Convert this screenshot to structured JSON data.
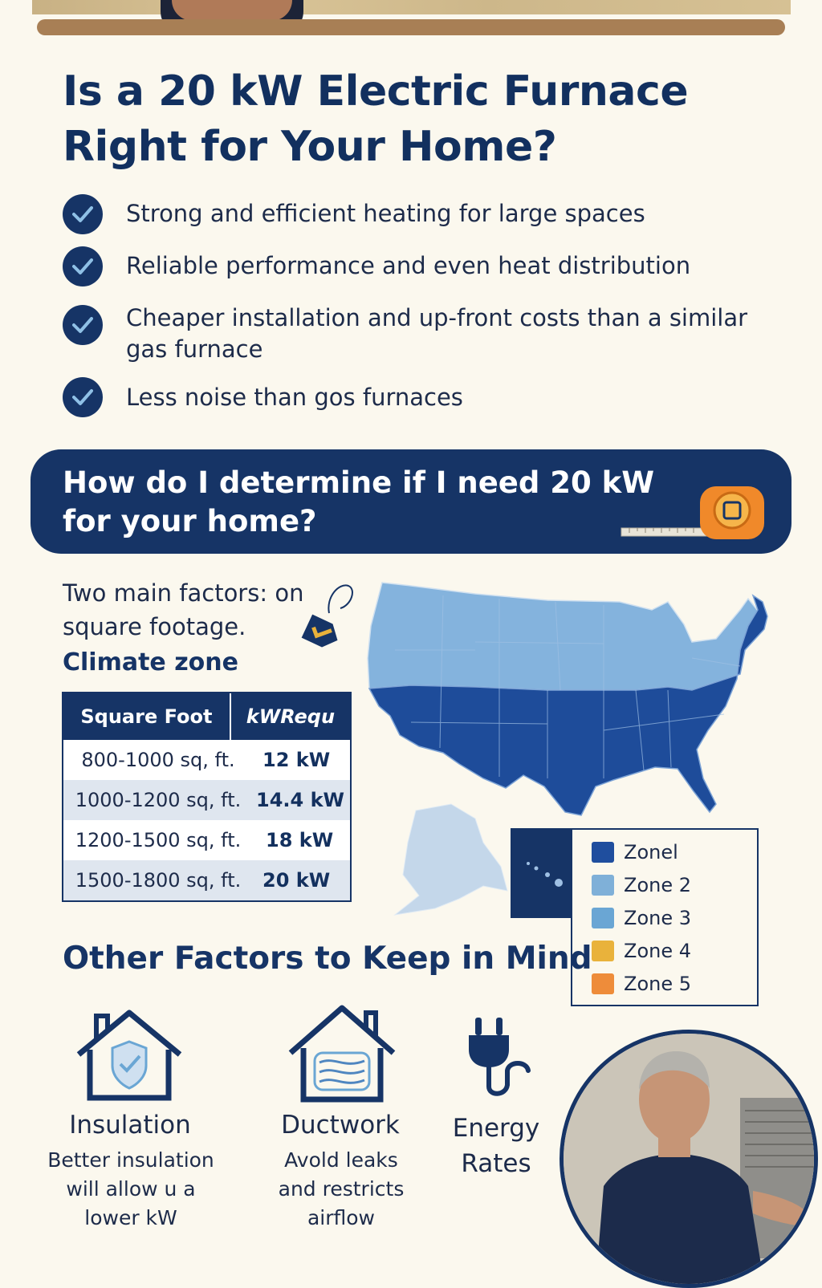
{
  "title": "Is a 20 kW Electric Furnace Right for Your Home?",
  "benefits": [
    "Strong and efficient heating for large spaces",
    "Reliable performance and even heat distribution",
    "Cheaper installation and up-front costs than a similar gas furnace",
    "Less noise than gos furnaces"
  ],
  "question": "How do I determine if I need 20 kW for your home?",
  "factors_text": "Two main factors: on square footage.",
  "climate_label": "Climate zone",
  "table": {
    "headers": [
      "Square Foot",
      "kWRequ"
    ],
    "rows": [
      [
        "800-1000 sq, ft.",
        "12 kW"
      ],
      [
        "1000-1200 sq, ft.",
        "14.4 kW"
      ],
      [
        "1200-1500 sq, ft.",
        "18 kW"
      ],
      [
        "1500-1800 sq, ft.",
        "20 kW"
      ]
    ]
  },
  "legend": [
    {
      "label": "Zonel",
      "color": "#1f4e9e"
    },
    {
      "label": "Zone 2",
      "color": "#7fb0d8"
    },
    {
      "label": "Zone 3",
      "color": "#6aa6d4"
    },
    {
      "label": "Zone 4",
      "color": "#e9b23b"
    },
    {
      "label": "Zone 5",
      "color": "#ee8c3a"
    }
  ],
  "other_title": "Other Factors to Keep in Mind",
  "factors": [
    {
      "title": "Insulation",
      "desc": [
        "Better insulation",
        "will allow u a",
        "lower kW"
      ],
      "icon": "house-shield-icon"
    },
    {
      "title": "Ductwork",
      "desc": [
        "Avold leaks",
        "and restricts",
        "airflow"
      ],
      "icon": "house-duct-icon"
    },
    {
      "title": "Energy",
      "title2": "Rates",
      "icon": "plug-icon"
    }
  ],
  "colors": {
    "navy": "#163466",
    "cream": "#fbf8ee",
    "zone_north": "#84b3dd",
    "zone_south": "#1e4c9a"
  }
}
